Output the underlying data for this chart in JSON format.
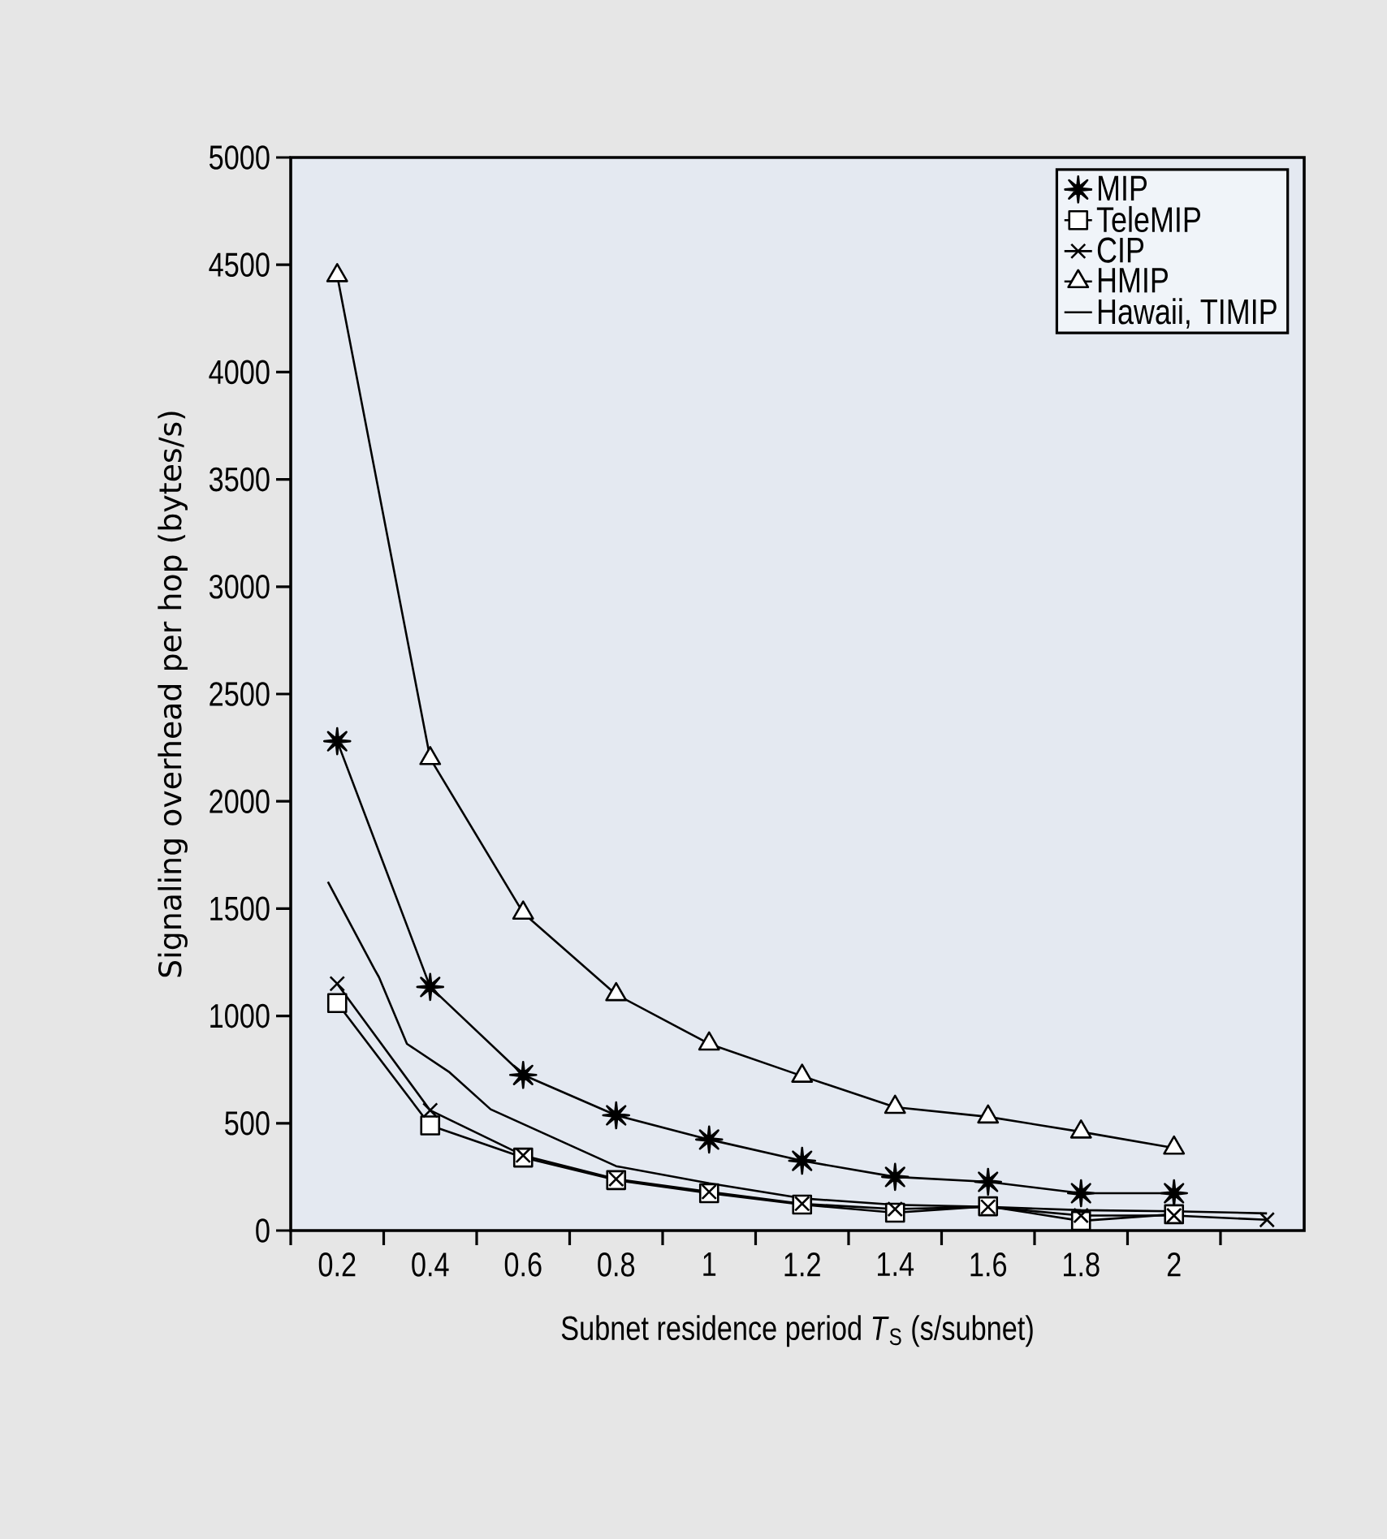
{
  "chart_data": {
    "type": "line",
    "xlabel": "Subnet residence period *T*$_{S}$ (s/subnet)",
    "ylabel": "Signaling overhead per hop (bytes/s)",
    "xlim": [
      0.1,
      2.28
    ],
    "ylim": [
      0,
      5000
    ],
    "xticks": [
      {
        "value": 0.1,
        "label": null
      },
      {
        "value": 0.2,
        "label": "0.2"
      },
      {
        "value": 0.3,
        "label": null
      },
      {
        "value": 0.4,
        "label": "0.4"
      },
      {
        "value": 0.5,
        "label": null
      },
      {
        "value": 0.6,
        "label": "0.6"
      },
      {
        "value": 0.7,
        "label": null
      },
      {
        "value": 0.8,
        "label": "0.8"
      },
      {
        "value": 0.9,
        "label": null
      },
      {
        "value": 1,
        "label": "1"
      },
      {
        "value": 1.1,
        "label": null
      },
      {
        "value": 1.2,
        "label": "1.2"
      },
      {
        "value": 1.3,
        "label": null
      },
      {
        "value": 1.4,
        "label": "1.4"
      },
      {
        "value": 1.5,
        "label": null
      },
      {
        "value": 1.6,
        "label": "1.6"
      },
      {
        "value": 1.7,
        "label": null
      },
      {
        "value": 1.8,
        "label": "1.8"
      },
      {
        "value": 1.9,
        "label": null
      },
      {
        "value": 2,
        "label": "2"
      },
      {
        "value": 2.1,
        "label": null
      }
    ],
    "yticks": [
      0,
      500,
      1000,
      1500,
      2000,
      2500,
      3000,
      3500,
      4000,
      4500,
      5000
    ],
    "legend": "top right",
    "grid": false,
    "series": [
      {
        "name": "MIP",
        "color": "#000000",
        "marker": "star",
        "x": [
          0.2,
          0.4,
          0.6,
          0.8,
          1,
          1.2,
          1.4,
          1.6,
          1.8,
          2
        ],
        "values": [
          2280,
          1135,
          725,
          537,
          424,
          325,
          250,
          227,
          174,
          174
        ]
      },
      {
        "name": "TeleMIP",
        "color": "#000000",
        "marker": "square",
        "x": [
          0.2,
          0.4,
          0.6,
          0.8,
          1,
          1.2,
          1.4,
          1.6,
          1.8,
          2
        ],
        "values": [
          1060,
          490,
          340,
          235,
          174,
          121,
          83,
          113,
          45,
          76
        ]
      },
      {
        "name": "CIP",
        "color": "#000000",
        "marker": "cross",
        "x": [
          0.2,
          0.4,
          0.6,
          0.8,
          1,
          1.2,
          1.4,
          1.6,
          1.8,
          2,
          2.2
        ],
        "values": [
          1150,
          560,
          350,
          240,
          180,
          125,
          100,
          110,
          70,
          70,
          50
        ]
      },
      {
        "name": "HMIP",
        "color": "#000000",
        "marker": "triangle",
        "x": [
          0.2,
          0.4,
          0.6,
          0.8,
          1,
          1.2,
          1.4,
          1.6,
          1.8,
          2
        ],
        "values": [
          4450,
          2200,
          1480,
          1100,
          870,
          720,
          575,
          530,
          460,
          385
        ]
      },
      {
        "name": "Hawaii, TIMIP",
        "color": "#000000",
        "marker": "none",
        "x": [
          0.18,
          0.28,
          0.29,
          0.35,
          0.44,
          0.53,
          0.8,
          1,
          1.2,
          1.4,
          1.6,
          1.8,
          2,
          2.2
        ],
        "values": [
          1625,
          1218,
          1180,
          870,
          740,
          565,
          300,
          220,
          150,
          120,
          110,
          95,
          90,
          80
        ]
      }
    ]
  }
}
